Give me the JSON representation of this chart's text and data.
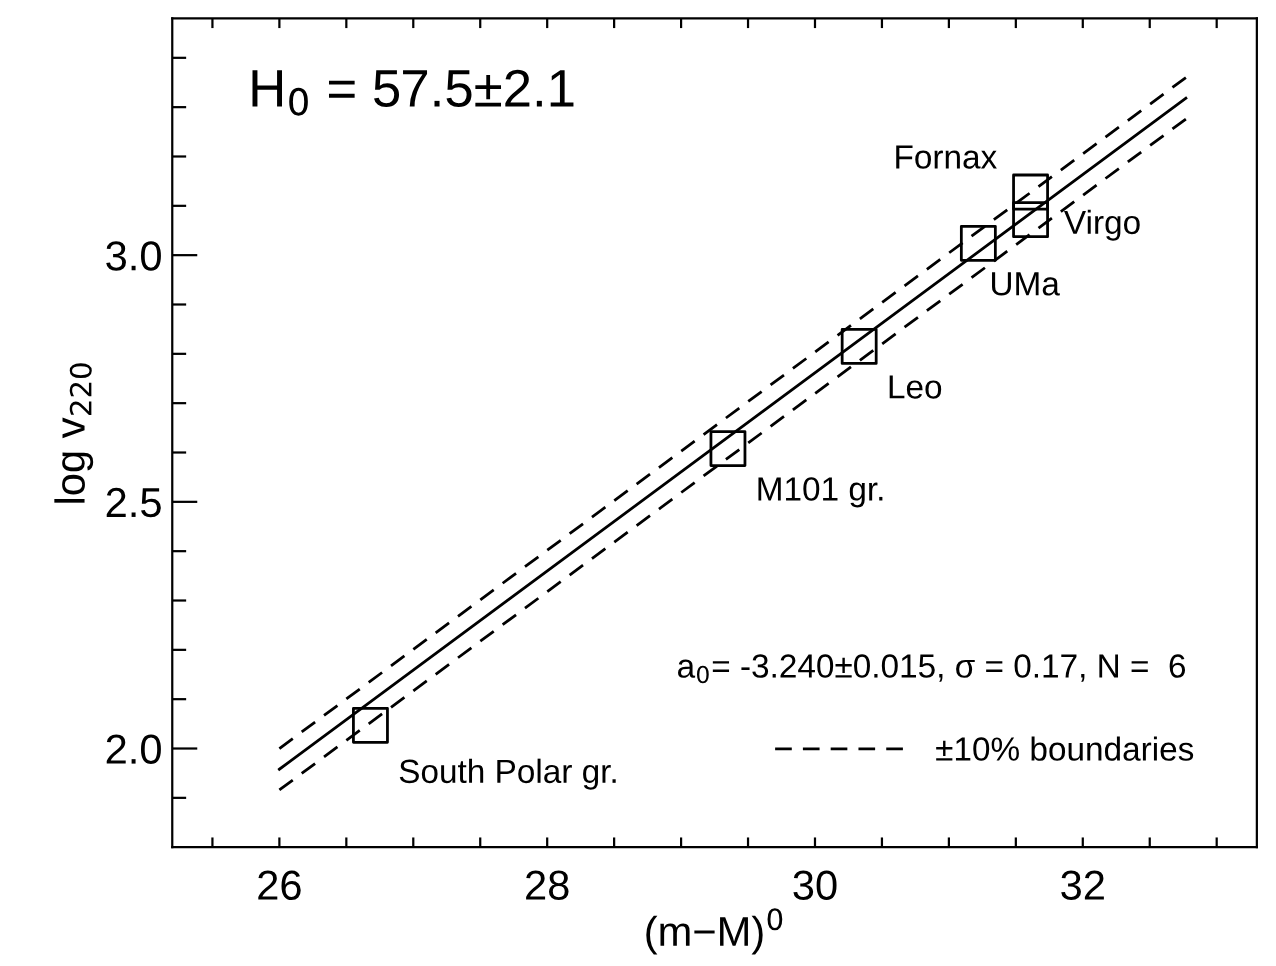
{
  "chart_data": {
    "type": "scatter",
    "xlabel": "(m−M)$^{0}$",
    "ylabel": "log v$_{220}$",
    "xlim": [
      25.2,
      33.3
    ],
    "ylim": [
      1.8,
      3.48
    ],
    "xticks": [
      {
        "value": 25.5,
        "label": null
      },
      26,
      {
        "value": 26.5,
        "label": null
      },
      {
        "value": 27,
        "label": null
      },
      {
        "value": 27.5,
        "label": null
      },
      28,
      {
        "value": 28.5,
        "label": null
      },
      {
        "value": 29,
        "label": null
      },
      {
        "value": 29.5,
        "label": null
      },
      30,
      {
        "value": 30.5,
        "label": null
      },
      {
        "value": 31,
        "label": null
      },
      {
        "value": 31.5,
        "label": null
      },
      32,
      {
        "value": 32.5,
        "label": null
      },
      {
        "value": 33,
        "label": null
      }
    ],
    "yticks": [
      {
        "value": 1.9,
        "label": null
      },
      {
        "value": 2.0,
        "label": "2.0"
      },
      {
        "value": 2.1,
        "label": null
      },
      {
        "value": 2.2,
        "label": null
      },
      {
        "value": 2.3,
        "label": null
      },
      {
        "value": 2.4,
        "label": null
      },
      2.5,
      {
        "value": 2.6,
        "label": null
      },
      {
        "value": 2.7,
        "label": null
      },
      {
        "value": 2.8,
        "label": null
      },
      {
        "value": 2.9,
        "label": null
      },
      {
        "value": 3.0,
        "label": "3.0"
      },
      {
        "value": 3.1,
        "label": null
      },
      {
        "value": 3.2,
        "label": null
      },
      {
        "value": 3.3,
        "label": null
      },
      {
        "value": 3.4,
        "label": null
      }
    ],
    "grid": false,
    "legend": "bottom right",
    "series": [
      {
        "marker": "square",
        "color": "#000000",
        "x": [
          26.68,
          29.35,
          30.33,
          31.22,
          31.61,
          31.61
        ],
        "values": [
          2.047,
          2.608,
          2.815,
          3.024,
          3.128,
          3.072
        ]
      },
      {
        "type": "line",
        "marker": "none",
        "line_style": "solid",
        "color": "#000000",
        "x": [
          26,
          32.77
        ],
        "values": [
          1.958,
          3.318
        ]
      },
      {
        "type": "line",
        "marker": "none",
        "line_style": "dashed",
        "color": "#000000",
        "name": "±10% boundaries",
        "x": [
          26,
          32.77
        ],
        "values": [
          2.0,
          3.36
        ]
      },
      {
        "type": "line",
        "marker": "none",
        "line_style": "dashed",
        "color": "#000000",
        "x": [
          26,
          32.77
        ],
        "values": [
          1.916,
          3.276
        ]
      }
    ],
    "annotations": [
      "H$_{0}$ = 57.5±2.1",
      "a$_{0}$= -3.240±0.015, σ = 0.17, N =  6",
      {
        "text": "South Polar gr.",
        "x": 26.68,
        "y": 2.047
      },
      {
        "text": "M101 gr.",
        "x": 29.35,
        "y": 2.608
      },
      {
        "text": "Leo",
        "x": 30.33,
        "y": 2.815
      },
      {
        "text": "UMa",
        "x": 31.22,
        "y": 3.024
      },
      {
        "text": "Fornax",
        "x": 31.61,
        "y": 3.128
      },
      {
        "text": "Virgo",
        "x": 31.61,
        "y": 3.072
      }
    ]
  }
}
